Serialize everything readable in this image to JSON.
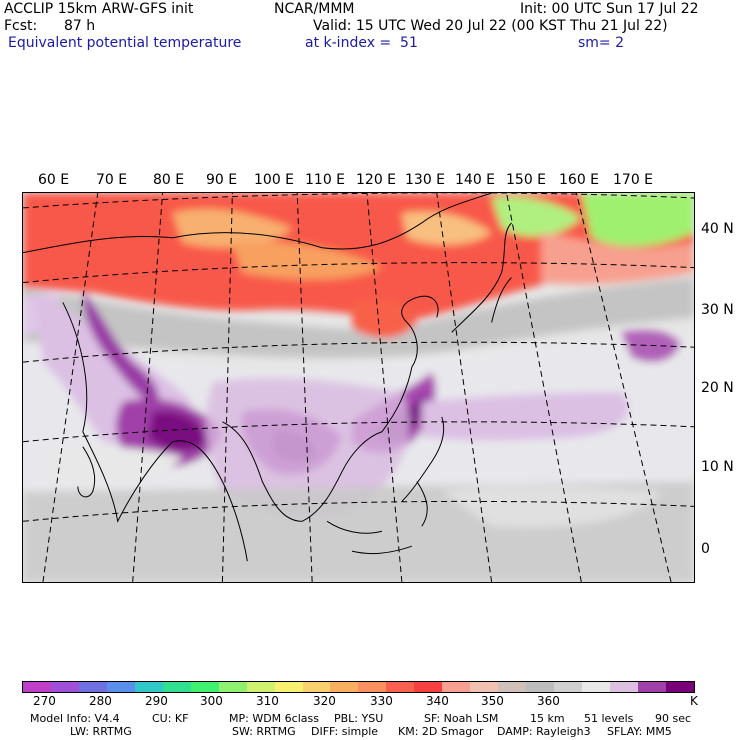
{
  "header": {
    "model": "ACCLIP 15km ARW-GFS init",
    "org": "NCAR/MMM",
    "init": "Init: 00 UTC Sun 17 Jul 22",
    "fcst_label": "Fcst:",
    "fcst_value": "87 h",
    "valid": "Valid: 15 UTC Wed 20 Jul 22 (00 KST Thu 21 Jul 22)",
    "field": "Equivalent potential temperature",
    "level": "at k-index =  51",
    "smoothing": "sm= 2"
  },
  "map": {
    "lon_labels": [
      "60 E",
      "70 E",
      "80 E",
      "90 E",
      "100 E",
      "110 E",
      "120 E",
      "130 E",
      "140 E",
      "150 E",
      "160 E",
      "170 E"
    ],
    "lat_labels": [
      "40 N",
      "30 N",
      "20 N",
      "10 N",
      "0"
    ]
  },
  "colorbar": {
    "colors": [
      "#c03fc8",
      "#a050d8",
      "#7070e0",
      "#5a90ec",
      "#30c8c8",
      "#30e090",
      "#40f070",
      "#90f070",
      "#d0f070",
      "#f8f070",
      "#f8d070",
      "#f8b060",
      "#f89060",
      "#f86050",
      "#f84040",
      "#f8a090",
      "#f0c0b0",
      "#d0c0b8",
      "#bcbcbc",
      "#d0d0d0",
      "#e8e8e8",
      "#dcc0e0",
      "#a040a8",
      "#780078"
    ],
    "tick_labels": [
      "270",
      "280",
      "290",
      "300",
      "310",
      "320",
      "330",
      "340",
      "350",
      "360"
    ],
    "unit": "K"
  },
  "footer": {
    "line1": [
      "Model Info: V4.4",
      "CU: KF",
      "MP: WDM 6class",
      "PBL: YSU",
      "SF: Noah LSM",
      "15 km",
      "51 levels",
      "90 sec"
    ],
    "line2": [
      "LW: RRTMG",
      "SW: RRTMG",
      "DIFF: simple",
      "KM: 2D Smagor",
      "DAMP: Rayleigh3",
      "SFLAY: MM5"
    ]
  }
}
